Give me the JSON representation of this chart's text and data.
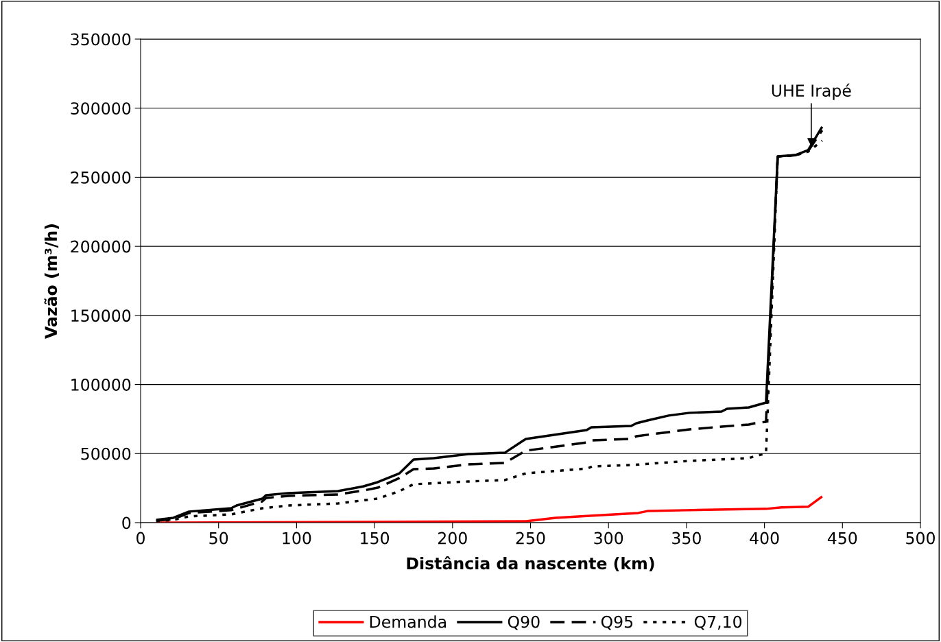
{
  "chart_data": {
    "type": "line",
    "xlabel": "Distância da nascente (km)",
    "ylabel": "Vazão (m³/h)",
    "xlim": [
      0,
      500
    ],
    "xticks": [
      0,
      50,
      100,
      150,
      200,
      250,
      300,
      350,
      400,
      450,
      500
    ],
    "ylim": [
      0,
      350000
    ],
    "yticks": [
      0,
      50000,
      100000,
      150000,
      200000,
      250000,
      300000,
      350000
    ],
    "grid": "y",
    "legend": "bottom",
    "annotations": [
      {
        "text": "UHE Irapé",
        "x": 430,
        "y": 271000
      }
    ],
    "series": [
      {
        "name": "Demanda",
        "color": "#ff0000",
        "line_style": "solid",
        "x": [
          10,
          247,
          266,
          288,
          319,
          325,
          350,
          401,
          411,
          428,
          437
        ],
        "values": [
          0,
          1000,
          3500,
          5000,
          7000,
          8400,
          9000,
          10000,
          11000,
          11500,
          18900
        ]
      },
      {
        "name": "Q90",
        "color": "#000000",
        "line_style": "solid",
        "x": [
          10,
          21,
          31,
          58,
          61.5,
          78,
          80.5,
          94.5,
          126.5,
          143,
          152,
          166,
          175,
          188,
          210,
          233.5,
          247,
          286,
          289,
          314.5,
          318,
          325,
          338.5,
          352,
          372.5,
          376,
          390,
          401,
          408.5,
          420,
          428,
          437
        ],
        "values": [
          2000,
          3500,
          8000,
          10400,
          12400,
          17400,
          19900,
          21400,
          22800,
          26300,
          29300,
          35700,
          45700,
          46700,
          49600,
          50600,
          60600,
          67000,
          69000,
          70000,
          72000,
          74000,
          77500,
          79500,
          80400,
          82400,
          83400,
          86900,
          265100,
          266100,
          269600,
          286500
        ]
      },
      {
        "name": "Q95",
        "color": "#000000",
        "line_style": "dashed",
        "x": [
          10,
          21,
          31,
          58,
          78,
          80.5,
          94.5,
          126.5,
          143,
          152,
          166,
          175,
          188,
          210,
          233.5,
          247,
          286.5,
          289.5,
          314.5,
          318,
          352,
          372.5,
          390,
          394,
          401,
          408.5,
          420,
          428,
          437
        ],
        "values": [
          1500,
          2500,
          7000,
          9000,
          15400,
          17900,
          19400,
          20400,
          23300,
          25300,
          32300,
          38700,
          39200,
          42200,
          43200,
          52100,
          58100,
          59600,
          60600,
          62600,
          67500,
          69500,
          71000,
          72000,
          73000,
          265000,
          266000,
          269000,
          284000
        ]
      },
      {
        "name": "Q7,10",
        "color": "#000000",
        "line_style": "dotted",
        "x": [
          10,
          21,
          31,
          58,
          78,
          94.5,
          126.5,
          152,
          166,
          175,
          210,
          233.5,
          247,
          286.5,
          289.5,
          314.5,
          352,
          390,
          394,
          401,
          408.5,
          420,
          428,
          437
        ],
        "values": [
          1000,
          2000,
          4500,
          6000,
          10400,
          12400,
          13900,
          17400,
          22800,
          27800,
          29800,
          30800,
          35700,
          39200,
          40700,
          41700,
          44700,
          46700,
          48200,
          50100,
          265000,
          266000,
          268500,
          276500
        ]
      }
    ]
  }
}
